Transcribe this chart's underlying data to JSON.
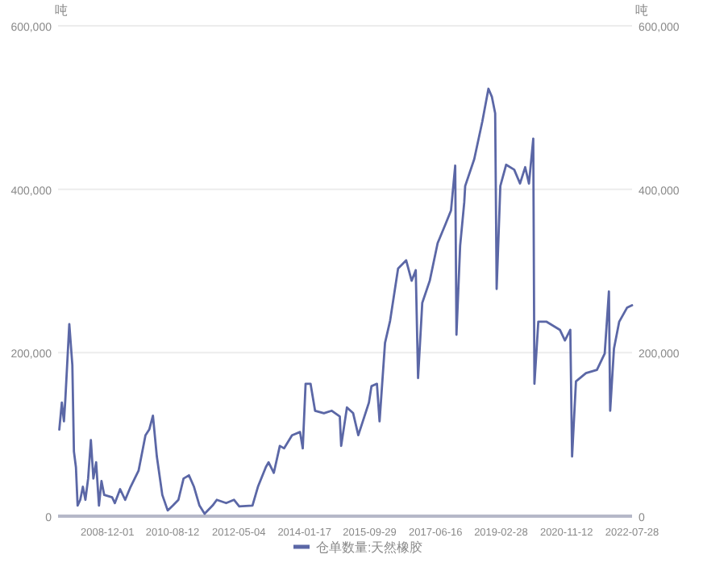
{
  "chart_data": {
    "type": "line",
    "ylabel": "吨",
    "y2label": "吨",
    "x": [
      "2007-09-01",
      "2007-09-25",
      "2007-10-15",
      "2007-10-28",
      "2007-12-05",
      "2008-01-03",
      "2008-01-18",
      "2008-02-06",
      "2008-02-22",
      "2008-03-18",
      "2008-04-12",
      "2008-05-06",
      "2008-06-01",
      "2008-06-27",
      "2008-07-21",
      "2008-08-16",
      "2008-09-12",
      "2008-10-06",
      "2008-11-01",
      "2009-01-15",
      "2009-02-10",
      "2009-04-01",
      "2009-05-19",
      "2009-07-10",
      "2009-09-24",
      "2009-11-28",
      "2010-01-03",
      "2010-02-07",
      "2010-03-16",
      "2010-05-07",
      "2010-06-27",
      "2010-08-16",
      "2010-10-07",
      "2010-11-25",
      "2011-01-15",
      "2011-03-04",
      "2011-04-25",
      "2011-06-13",
      "2011-08-28",
      "2011-10-07",
      "2012-01-04",
      "2012-03-18",
      "2012-05-07",
      "2012-09-10",
      "2012-11-01",
      "2013-01-15",
      "2013-02-10",
      "2013-04-01",
      "2013-05-28",
      "2013-07-07",
      "2013-09-21",
      "2013-12-06",
      "2014-01-01",
      "2014-01-28",
      "2014-03-16",
      "2014-04-28",
      "2014-07-21",
      "2014-10-04",
      "2014-12-19",
      "2015-01-01",
      "2015-02-25",
      "2015-04-25",
      "2015-06-13",
      "2015-09-22",
      "2015-10-16",
      "2015-12-07",
      "2016-01-01",
      "2016-02-22",
      "2016-04-10",
      "2016-06-25",
      "2016-09-10",
      "2016-11-01",
      "2016-12-10",
      "2017-01-01",
      "2017-02-10",
      "2017-04-22",
      "2017-07-06",
      "2017-09-21",
      "2017-11-10",
      "2017-12-20",
      "2018-01-01",
      "2018-02-05",
      "2018-03-16",
      "2018-03-25",
      "2018-06-19",
      "2018-09-04",
      "2018-11-01",
      "2018-12-04",
      "2019-01-04",
      "2019-01-18",
      "2019-02-22",
      "2019-04-18",
      "2019-07-04",
      "2019-08-28",
      "2019-10-16",
      "2019-11-21",
      "2020-01-01",
      "2020-01-12",
      "2020-02-18",
      "2020-05-04",
      "2020-09-10",
      "2020-10-28",
      "2020-12-18",
      "2021-01-04",
      "2021-02-10",
      "2021-05-16",
      "2021-08-28",
      "2021-11-10",
      "2021-12-20",
      "2022-01-01",
      "2022-02-06",
      "2022-03-28",
      "2022-06-10",
      "2022-07-28"
    ],
    "series": [
      {
        "name": "仓单数量:天然橡胶",
        "color": "#5b67a6",
        "values": [
          106000,
          139000,
          116000,
          142000,
          235000,
          185000,
          79000,
          60000,
          13000,
          20000,
          36000,
          20000,
          46000,
          93000,
          46000,
          66000,
          13000,
          43000,
          26000,
          23000,
          16000,
          33000,
          20000,
          36000,
          56000,
          99000,
          106000,
          123000,
          73000,
          26000,
          7000,
          13000,
          20000,
          46000,
          50000,
          36000,
          13000,
          3000,
          13000,
          20000,
          16000,
          20000,
          12000,
          13000,
          36000,
          60000,
          66000,
          53000,
          86000,
          83000,
          99000,
          103000,
          83000,
          162000,
          162000,
          129000,
          126000,
          129000,
          122000,
          86000,
          133000,
          126000,
          99000,
          139000,
          159000,
          162000,
          116000,
          212000,
          239000,
          303000,
          313000,
          288000,
          301000,
          169000,
          261000,
          288000,
          334000,
          358000,
          374000,
          429000,
          222000,
          331000,
          384000,
          404000,
          437000,
          483000,
          523000,
          513000,
          493000,
          278000,
          404000,
          430000,
          424000,
          407000,
          427000,
          407000,
          462000,
          162000,
          238000,
          238000,
          228000,
          215000,
          228000,
          73000,
          165000,
          175000,
          179000,
          199000,
          275000,
          129000,
          205000,
          238000,
          255000,
          258000
        ]
      }
    ],
    "xlim": [
      "2007-08-20",
      "2022-07-28"
    ],
    "xticks": [
      "2008-12-01",
      "2010-08-12",
      "2012-05-04",
      "2014-01-17",
      "2015-09-29",
      "2017-06-16",
      "2019-02-28",
      "2020-11-12",
      "2022-07-28"
    ],
    "ylim": [
      0,
      600000
    ],
    "yticks": [
      {
        "value": 0,
        "label": "0"
      },
      {
        "value": 200000,
        "label": "200,000"
      },
      {
        "value": 400000,
        "label": "400,000"
      },
      {
        "value": 600000,
        "label": "600,000"
      }
    ],
    "y2lim": [
      0,
      600000
    ],
    "y2ticks": [
      {
        "value": 0,
        "label": "0"
      },
      {
        "value": 200000,
        "label": "200,000"
      },
      {
        "value": 400000,
        "label": "400,000"
      },
      {
        "value": 600000,
        "label": "600,000"
      }
    ],
    "grid": "y",
    "legend": "bottom"
  }
}
